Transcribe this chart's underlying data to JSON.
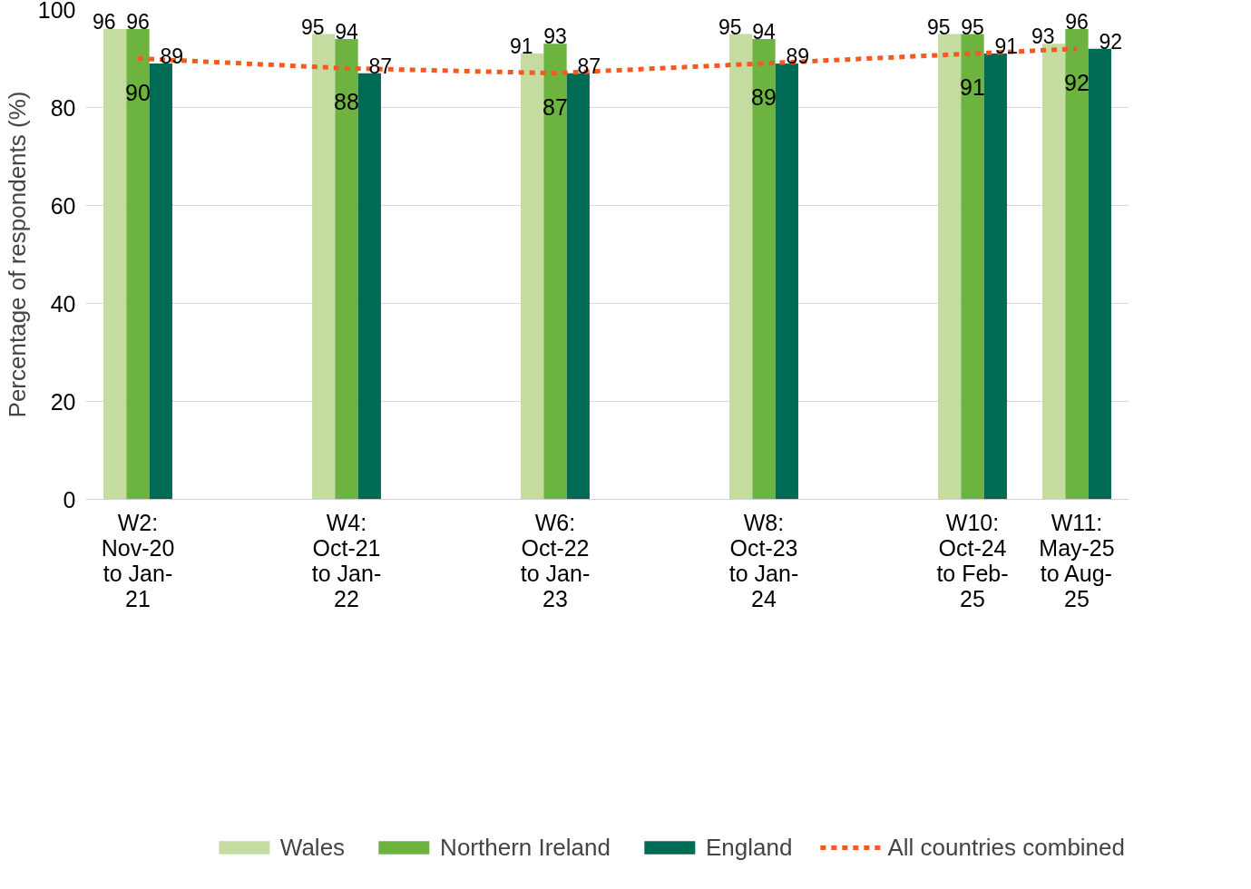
{
  "chart_data": {
    "type": "bar",
    "ylabel": "Percentage of respondents (%)",
    "categories": [
      "W2: Nov-20 to Jan-21",
      null,
      "W4: Oct-21 to Jan-22",
      null,
      "W6: Oct-22 to Jan-23",
      null,
      "W8: Oct-23 to Jan-24",
      null,
      "W10: Oct-24 to Feb-25",
      "W11: May-25 to Aug-25"
    ],
    "ylim": [
      0,
      100
    ],
    "yticks": [
      0,
      20,
      40,
      60,
      80,
      100
    ],
    "series": [
      {
        "name": "Wales",
        "color": "#c5dca0",
        "values": [
          96,
          null,
          95,
          null,
          91,
          null,
          95,
          null,
          95,
          93
        ]
      },
      {
        "name": "Northern Ireland",
        "color": "#6db33f",
        "values": [
          96,
          null,
          94,
          null,
          93,
          null,
          94,
          null,
          95,
          96
        ]
      },
      {
        "name": "England",
        "color": "#006b54",
        "values": [
          89,
          null,
          87,
          null,
          87,
          null,
          89,
          null,
          91,
          92
        ]
      },
      {
        "name": "All countries combined",
        "type": "line",
        "color": "#f15a22",
        "line_style": "dashed",
        "values": [
          90,
          null,
          88,
          null,
          87,
          null,
          89,
          null,
          91,
          92
        ]
      }
    ],
    "data_labels": true,
    "grid": "y",
    "legend": "bottom"
  }
}
